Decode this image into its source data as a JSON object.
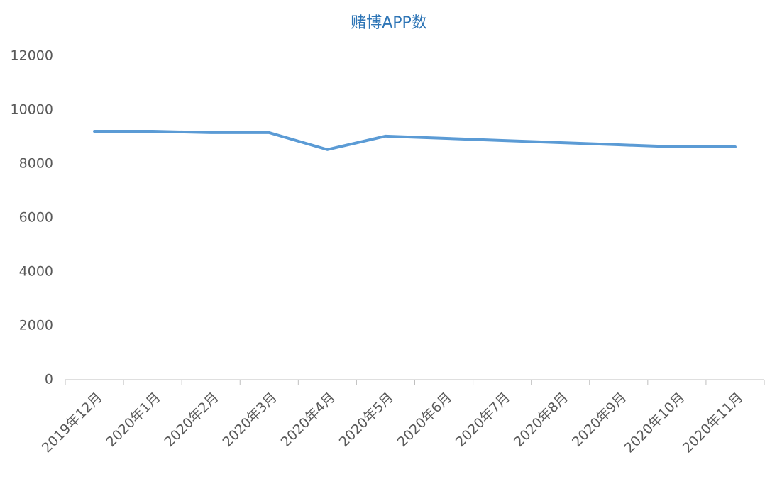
{
  "chart_data": {
    "type": "line",
    "title": "赌博APP数",
    "categories": [
      "2019年12月",
      "2020年1月",
      "2020年2月",
      "2020年3月",
      "2020年4月",
      "2020年5月",
      "2020年6月",
      "2020年7月",
      "2020年8月",
      "2020年9月",
      "2020年10月",
      "2020年11月"
    ],
    "values": [
      9210,
      9210,
      9160,
      9160,
      8530,
      9030,
      8950,
      8870,
      8790,
      8710,
      8630,
      8630
    ],
    "color": "#5b9bd5",
    "ylim": [
      0,
      12000
    ],
    "yticks": [
      0,
      2000,
      4000,
      6000,
      8000,
      10000,
      12000
    ],
    "grid": false
  }
}
